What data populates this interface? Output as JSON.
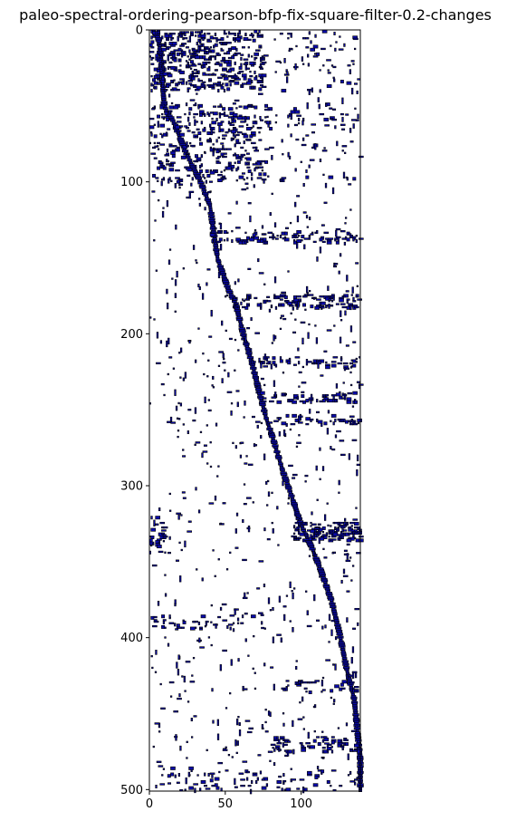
{
  "chart_data": {
    "type": "heatmap",
    "title": "paleo-spectral-ordering-pearson-bfp-fix-square-filter-0.2-changes",
    "xlabel": "",
    "ylabel": "",
    "x_range": [
      0,
      139
    ],
    "y_range": [
      0,
      501
    ],
    "y_inverted": true,
    "x_ticks": [
      0,
      50,
      100
    ],
    "y_ticks": [
      0,
      100,
      200,
      300,
      400,
      500
    ],
    "grid": false,
    "colors": {
      "cell": "#0a0aa8",
      "cell_edge": "#000000",
      "background": "#ffffff"
    },
    "diagonal_band": [
      [
        0,
        3
      ],
      [
        5,
        6
      ],
      [
        20,
        8
      ],
      [
        40,
        9
      ],
      [
        50,
        10
      ],
      [
        60,
        16
      ],
      [
        80,
        24
      ],
      [
        100,
        34
      ],
      [
        115,
        40
      ],
      [
        130,
        42
      ],
      [
        150,
        45
      ],
      [
        170,
        52
      ],
      [
        180,
        57
      ],
      [
        200,
        62
      ],
      [
        220,
        68
      ],
      [
        240,
        73
      ],
      [
        255,
        77
      ],
      [
        270,
        82
      ],
      [
        290,
        88
      ],
      [
        310,
        95
      ],
      [
        325,
        100
      ],
      [
        340,
        107
      ],
      [
        355,
        113
      ],
      [
        375,
        120
      ],
      [
        395,
        125
      ],
      [
        420,
        130
      ],
      [
        440,
        135
      ],
      [
        460,
        137
      ],
      [
        480,
        139
      ],
      [
        501,
        139
      ]
    ],
    "block_bands": [
      {
        "rows": [
          0,
          40
        ],
        "cols": [
          0,
          75
        ],
        "density": 0.25
      },
      {
        "rows": [
          0,
          40
        ],
        "cols": [
          85,
          139
        ],
        "density": 0.04
      },
      {
        "rows": [
          48,
          100
        ],
        "cols": [
          0,
          80
        ],
        "density": 0.12
      },
      {
        "rows": [
          48,
          100
        ],
        "cols": [
          85,
          139
        ],
        "density": 0.03
      },
      {
        "rows": [
          132,
          140
        ],
        "cols": [
          40,
          139
        ],
        "density": 0.25
      },
      {
        "rows": [
          174,
          183
        ],
        "cols": [
          55,
          139
        ],
        "density": 0.25
      },
      {
        "rows": [
          215,
          222
        ],
        "cols": [
          65,
          139
        ],
        "density": 0.2
      },
      {
        "rows": [
          238,
          245
        ],
        "cols": [
          70,
          139
        ],
        "density": 0.2
      },
      {
        "rows": [
          253,
          260
        ],
        "cols": [
          75,
          139
        ],
        "density": 0.15
      },
      {
        "rows": [
          324,
          336
        ],
        "cols": [
          95,
          139
        ],
        "density": 0.45
      },
      {
        "rows": [
          320,
          345
        ],
        "cols": [
          0,
          10
        ],
        "density": 0.2
      },
      {
        "rows": [
          385,
          395
        ],
        "cols": [
          0,
          70
        ],
        "density": 0.12
      },
      {
        "rows": [
          428,
          436
        ],
        "cols": [
          85,
          139
        ],
        "density": 0.15
      },
      {
        "rows": [
          465,
          475
        ],
        "cols": [
          80,
          139
        ],
        "density": 0.2
      },
      {
        "rows": [
          485,
          501
        ],
        "cols": [
          0,
          139
        ],
        "density": 0.05
      }
    ],
    "background_density": 0.012
  }
}
